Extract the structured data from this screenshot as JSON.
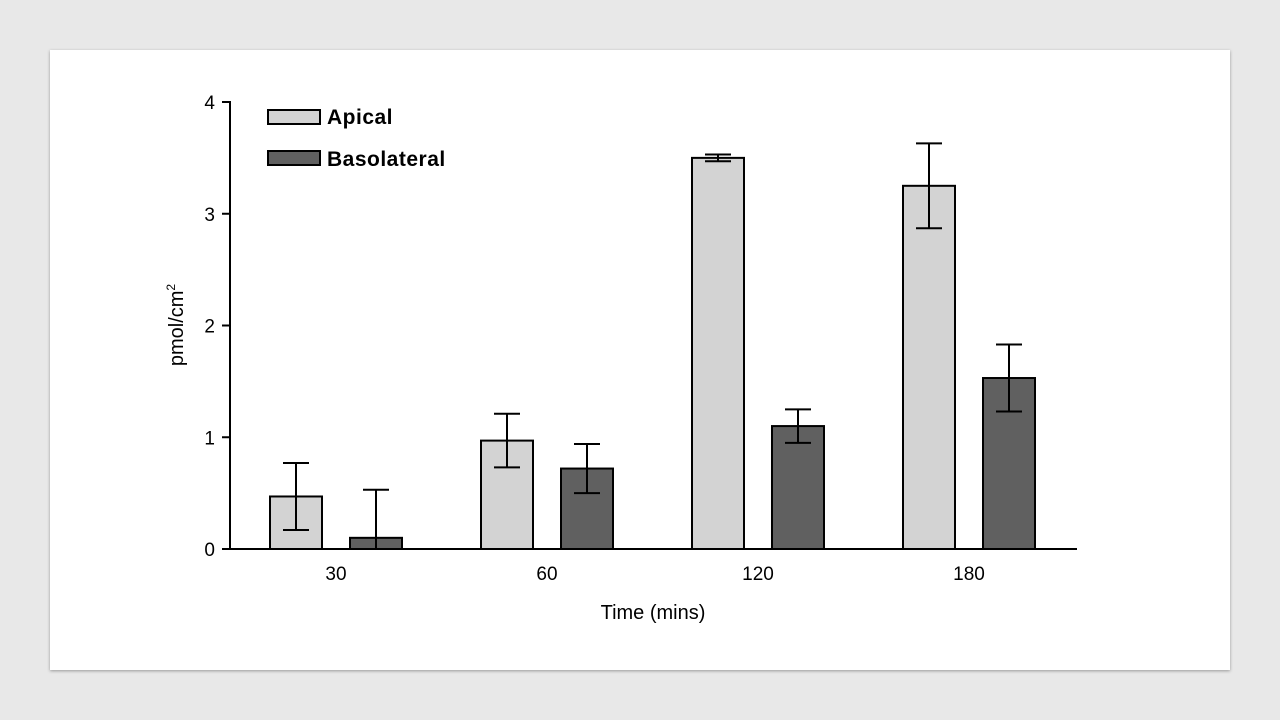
{
  "chart_data": {
    "type": "bar",
    "title": "",
    "xlabel": "Time (mins)",
    "ylabel": "pmol/cm",
    "ylabel_superscript": "2",
    "ylim": [
      0,
      4
    ],
    "yticks": [
      "0",
      "1",
      "2",
      "3",
      "4"
    ],
    "categories": [
      "30",
      "60",
      "120",
      "180"
    ],
    "legend_position": "top-left",
    "grid": false,
    "series": [
      {
        "name": "Apical",
        "color": "#d3d3d3",
        "values": [
          0.47,
          0.97,
          3.5,
          3.25
        ],
        "error": [
          0.3,
          0.24,
          0.03,
          0.38
        ]
      },
      {
        "name": "Basolateral",
        "color": "#606060",
        "values": [
          0.1,
          0.72,
          1.1,
          1.53
        ],
        "error": [
          0.43,
          0.22,
          0.15,
          0.3
        ]
      }
    ]
  }
}
